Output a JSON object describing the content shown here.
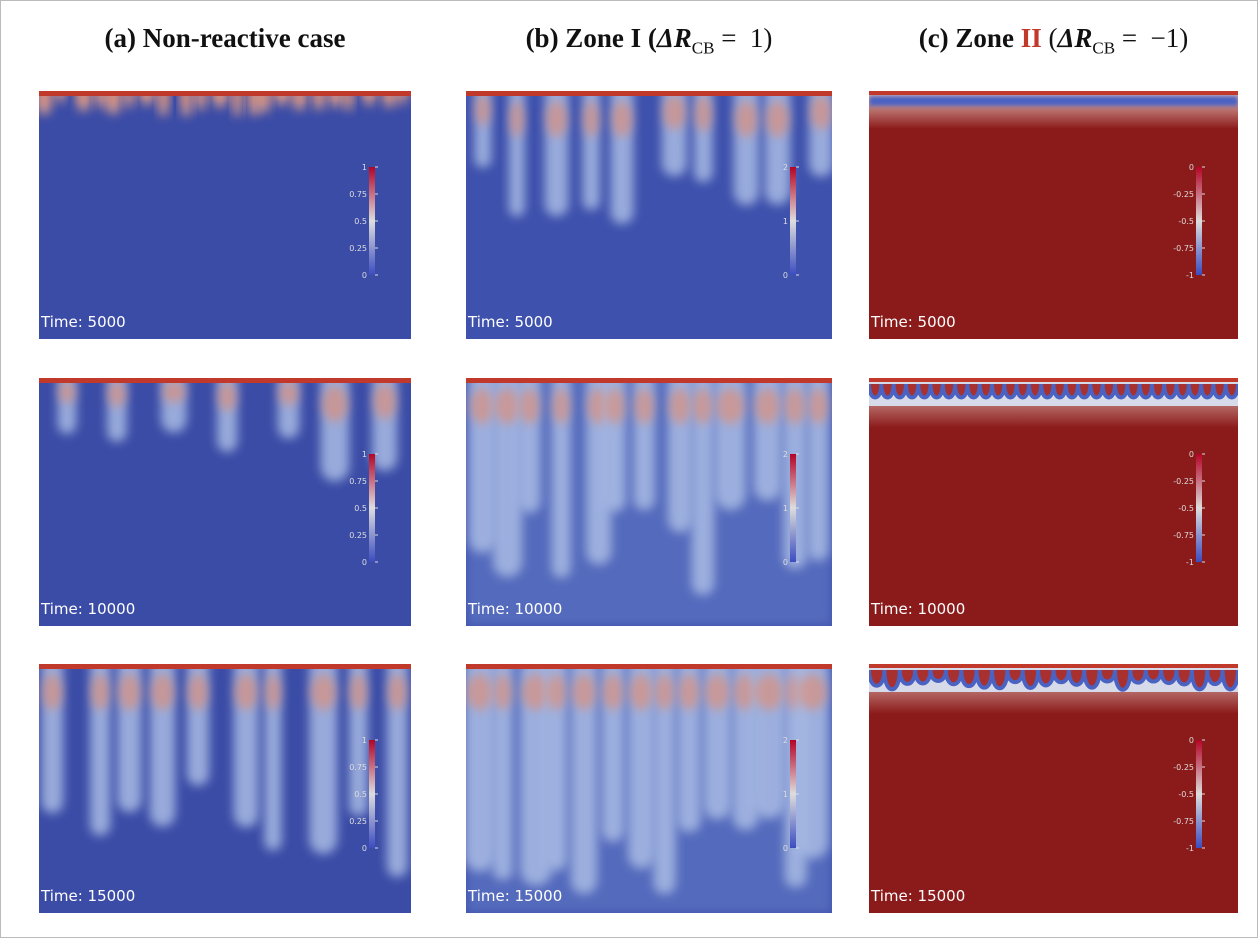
{
  "columns": [
    {
      "title": [
        {
          "text": "(a) Non-reactive case"
        }
      ],
      "colorbar": {
        "range": [
          0,
          1
        ],
        "ticks": [
          0,
          0.25,
          0.5,
          0.75,
          1
        ]
      },
      "panels": [
        {
          "time_label": "Time: 5000"
        },
        {
          "time_label": "Time: 10000"
        },
        {
          "time_label": "Time: 15000"
        }
      ]
    },
    {
      "title": [
        {
          "text": "(b) Zone I ("
        },
        {
          "text": "ΔR",
          "italic": true
        },
        {
          "text": "CB",
          "sub": true
        },
        {
          "text": " =  1)"
        }
      ],
      "colorbar": {
        "range": [
          0,
          2
        ],
        "ticks": [
          0,
          1,
          2
        ]
      },
      "panels": [
        {
          "time_label": "Time: 5000"
        },
        {
          "time_label": "Time: 10000"
        },
        {
          "time_label": "Time: 15000"
        }
      ]
    },
    {
      "title": [
        {
          "text": "(c) Zone "
        },
        {
          "text": "II",
          "color": "#c0392b"
        },
        {
          "text": " ("
        },
        {
          "text": "ΔR",
          "italic": true
        },
        {
          "text": "CB",
          "sub": true
        },
        {
          "text": " =  −1)"
        }
      ],
      "colorbar": {
        "range": [
          -1,
          0
        ],
        "ticks": [
          -1,
          -0.75,
          -0.5,
          -0.25,
          0
        ]
      },
      "panels": [
        {
          "time_label": "Time: 5000"
        },
        {
          "time_label": "Time: 10000"
        },
        {
          "time_label": "Time: 15000"
        }
      ]
    }
  ]
}
